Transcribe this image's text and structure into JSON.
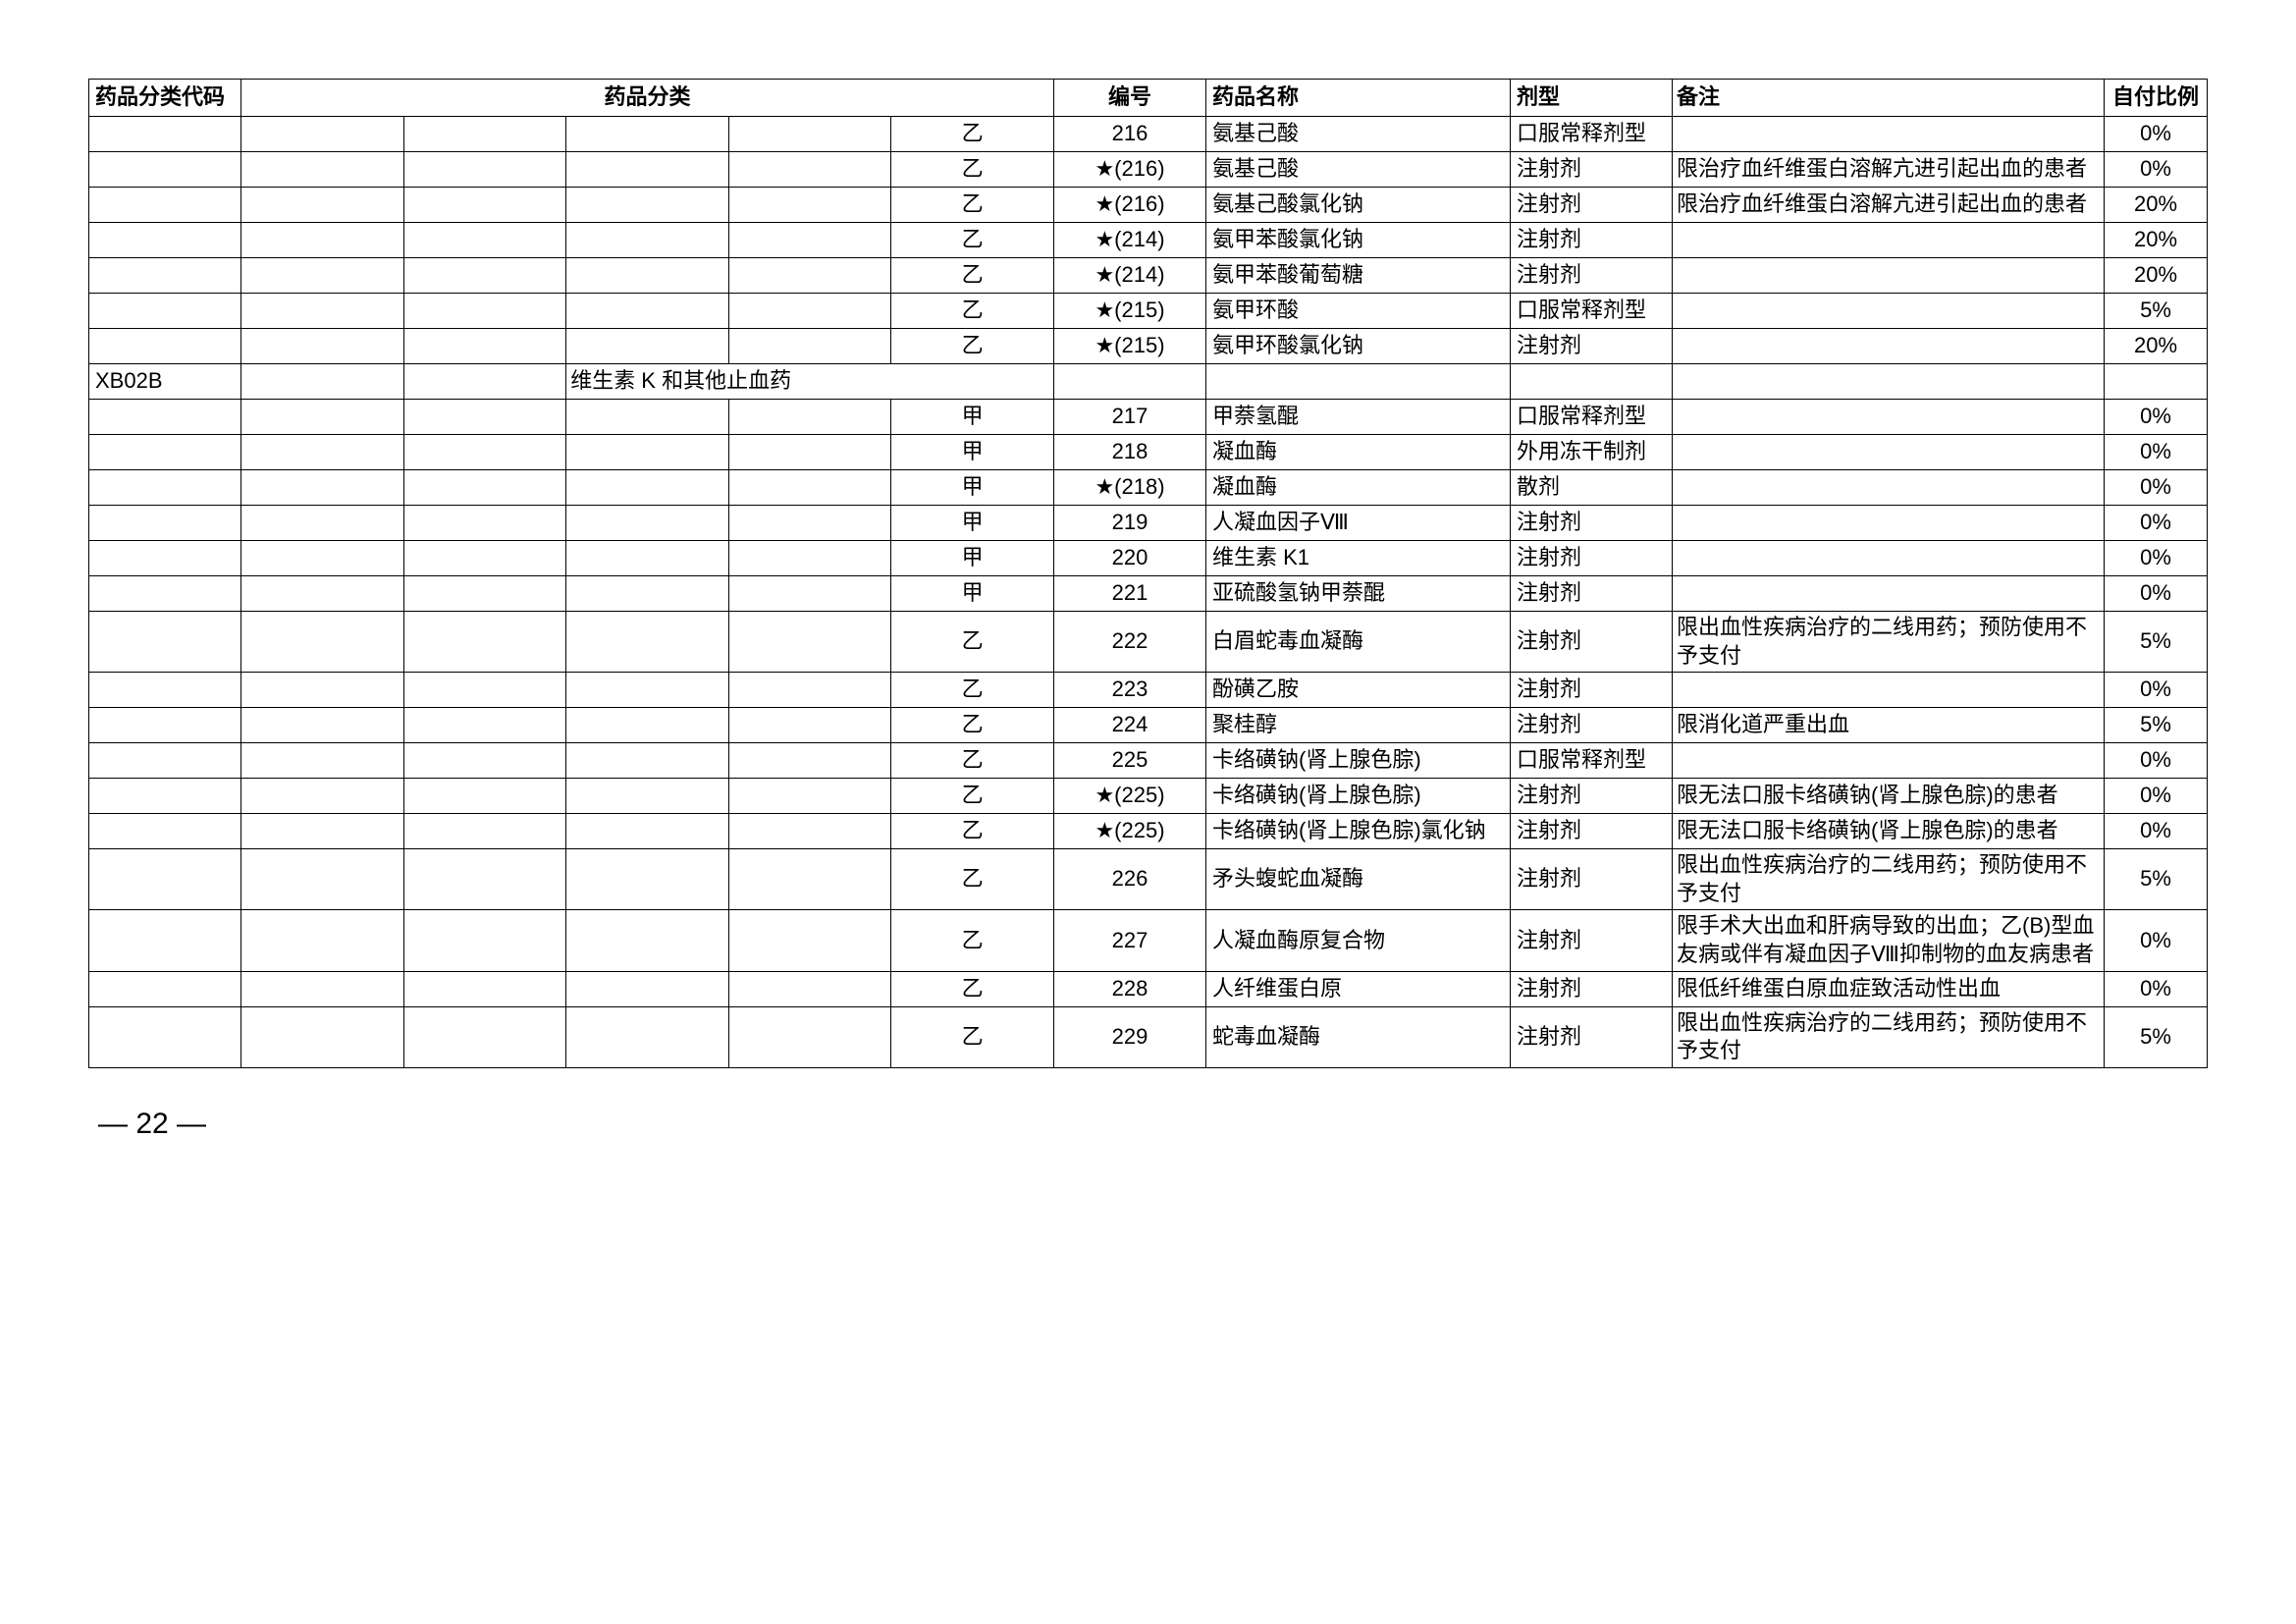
{
  "headers": {
    "code": "药品分类代码",
    "category": "药品分类",
    "number": "编号",
    "name": "药品名称",
    "form": "剂型",
    "remark": "备注",
    "ratio": "自付比例"
  },
  "rows": [
    {
      "code": "",
      "c1": "",
      "c2": "",
      "c3": "",
      "c4": "",
      "c5": "乙",
      "num": "216",
      "name": "氨基己酸",
      "form": "口服常释剂型",
      "remark": "",
      "ratio": "0%"
    },
    {
      "code": "",
      "c1": "",
      "c2": "",
      "c3": "",
      "c4": "",
      "c5": "乙",
      "num": "★(216)",
      "name": "氨基己酸",
      "form": "注射剂",
      "remark": "限治疗血纤维蛋白溶解亢进引起出血的患者",
      "ratio": "0%"
    },
    {
      "code": "",
      "c1": "",
      "c2": "",
      "c3": "",
      "c4": "",
      "c5": "乙",
      "num": "★(216)",
      "name": "氨基己酸氯化钠",
      "form": "注射剂",
      "remark": "限治疗血纤维蛋白溶解亢进引起出血的患者",
      "ratio": "20%"
    },
    {
      "code": "",
      "c1": "",
      "c2": "",
      "c3": "",
      "c4": "",
      "c5": "乙",
      "num": "★(214)",
      "name": "氨甲苯酸氯化钠",
      "form": "注射剂",
      "remark": "",
      "ratio": "20%"
    },
    {
      "code": "",
      "c1": "",
      "c2": "",
      "c3": "",
      "c4": "",
      "c5": "乙",
      "num": "★(214)",
      "name": "氨甲苯酸葡萄糖",
      "form": "注射剂",
      "remark": "",
      "ratio": "20%"
    },
    {
      "code": "",
      "c1": "",
      "c2": "",
      "c3": "",
      "c4": "",
      "c5": "乙",
      "num": "★(215)",
      "name": "氨甲环酸",
      "form": "口服常释剂型",
      "remark": "",
      "ratio": "5%"
    },
    {
      "code": "",
      "c1": "",
      "c2": "",
      "c3": "",
      "c4": "",
      "c5": "乙",
      "num": "★(215)",
      "name": "氨甲环酸氯化钠",
      "form": "注射剂",
      "remark": "",
      "ratio": "20%"
    },
    {
      "code": "XB02B",
      "c1": "",
      "c2": "",
      "c3_span": true,
      "c3": "维生素 K 和其他止血药",
      "c4": "",
      "c5": "",
      "num": "",
      "name": "",
      "form": "",
      "remark": "",
      "ratio": ""
    },
    {
      "code": "",
      "c1": "",
      "c2": "",
      "c3": "",
      "c4": "",
      "c5": "甲",
      "num": "217",
      "name": "甲萘氢醌",
      "form": "口服常释剂型",
      "remark": "",
      "ratio": "0%"
    },
    {
      "code": "",
      "c1": "",
      "c2": "",
      "c3": "",
      "c4": "",
      "c5": "甲",
      "num": "218",
      "name": "凝血酶",
      "form": "外用冻干制剂",
      "remark": "",
      "ratio": "0%"
    },
    {
      "code": "",
      "c1": "",
      "c2": "",
      "c3": "",
      "c4": "",
      "c5": "甲",
      "num": "★(218)",
      "name": "凝血酶",
      "form": "散剂",
      "remark": "",
      "ratio": "0%"
    },
    {
      "code": "",
      "c1": "",
      "c2": "",
      "c3": "",
      "c4": "",
      "c5": "甲",
      "num": "219",
      "name": "人凝血因子Ⅷ",
      "form": "注射剂",
      "remark": "",
      "ratio": "0%"
    },
    {
      "code": "",
      "c1": "",
      "c2": "",
      "c3": "",
      "c4": "",
      "c5": "甲",
      "num": "220",
      "name": "维生素 K1",
      "form": "注射剂",
      "remark": "",
      "ratio": "0%"
    },
    {
      "code": "",
      "c1": "",
      "c2": "",
      "c3": "",
      "c4": "",
      "c5": "甲",
      "num": "221",
      "name": "亚硫酸氢钠甲萘醌",
      "form": "注射剂",
      "remark": "",
      "ratio": "0%"
    },
    {
      "code": "",
      "c1": "",
      "c2": "",
      "c3": "",
      "c4": "",
      "c5": "乙",
      "num": "222",
      "name": "白眉蛇毒血凝酶",
      "form": "注射剂",
      "remark": "限出血性疾病治疗的二线用药；预防使用不予支付",
      "ratio": "5%"
    },
    {
      "code": "",
      "c1": "",
      "c2": "",
      "c3": "",
      "c4": "",
      "c5": "乙",
      "num": "223",
      "name": "酚磺乙胺",
      "form": "注射剂",
      "remark": "",
      "ratio": "0%"
    },
    {
      "code": "",
      "c1": "",
      "c2": "",
      "c3": "",
      "c4": "",
      "c5": "乙",
      "num": "224",
      "name": "聚桂醇",
      "form": "注射剂",
      "remark": "限消化道严重出血",
      "ratio": "5%"
    },
    {
      "code": "",
      "c1": "",
      "c2": "",
      "c3": "",
      "c4": "",
      "c5": "乙",
      "num": "225",
      "name": "卡络磺钠(肾上腺色腙)",
      "form": "口服常释剂型",
      "remark": "",
      "ratio": "0%"
    },
    {
      "code": "",
      "c1": "",
      "c2": "",
      "c3": "",
      "c4": "",
      "c5": "乙",
      "num": "★(225)",
      "name": "卡络磺钠(肾上腺色腙)",
      "form": "注射剂",
      "remark": "限无法口服卡络磺钠(肾上腺色腙)的患者",
      "ratio": "0%"
    },
    {
      "code": "",
      "c1": "",
      "c2": "",
      "c3": "",
      "c4": "",
      "c5": "乙",
      "num": "★(225)",
      "name": "卡络磺钠(肾上腺色腙)氯化钠",
      "form": "注射剂",
      "remark": "限无法口服卡络磺钠(肾上腺色腙)的患者",
      "ratio": "0%"
    },
    {
      "code": "",
      "c1": "",
      "c2": "",
      "c3": "",
      "c4": "",
      "c5": "乙",
      "num": "226",
      "name": "矛头蝮蛇血凝酶",
      "form": "注射剂",
      "remark": "限出血性疾病治疗的二线用药；预防使用不予支付",
      "ratio": "5%"
    },
    {
      "code": "",
      "c1": "",
      "c2": "",
      "c3": "",
      "c4": "",
      "c5": "乙",
      "num": "227",
      "name": "人凝血酶原复合物",
      "form": "注射剂",
      "remark": "限手术大出血和肝病导致的出血；乙(B)型血友病或伴有凝血因子Ⅷ抑制物的血友病患者",
      "ratio": "0%"
    },
    {
      "code": "",
      "c1": "",
      "c2": "",
      "c3": "",
      "c4": "",
      "c5": "乙",
      "num": "228",
      "name": "人纤维蛋白原",
      "form": "注射剂",
      "remark": "限低纤维蛋白原血症致活动性出血",
      "ratio": "0%"
    },
    {
      "code": "",
      "c1": "",
      "c2": "",
      "c3": "",
      "c4": "",
      "c5": "乙",
      "num": "229",
      "name": "蛇毒血凝酶",
      "form": "注射剂",
      "remark": "限出血性疾病治疗的二线用药；预防使用不予支付",
      "ratio": "5%"
    }
  ],
  "pageNumber": "— 22 —"
}
